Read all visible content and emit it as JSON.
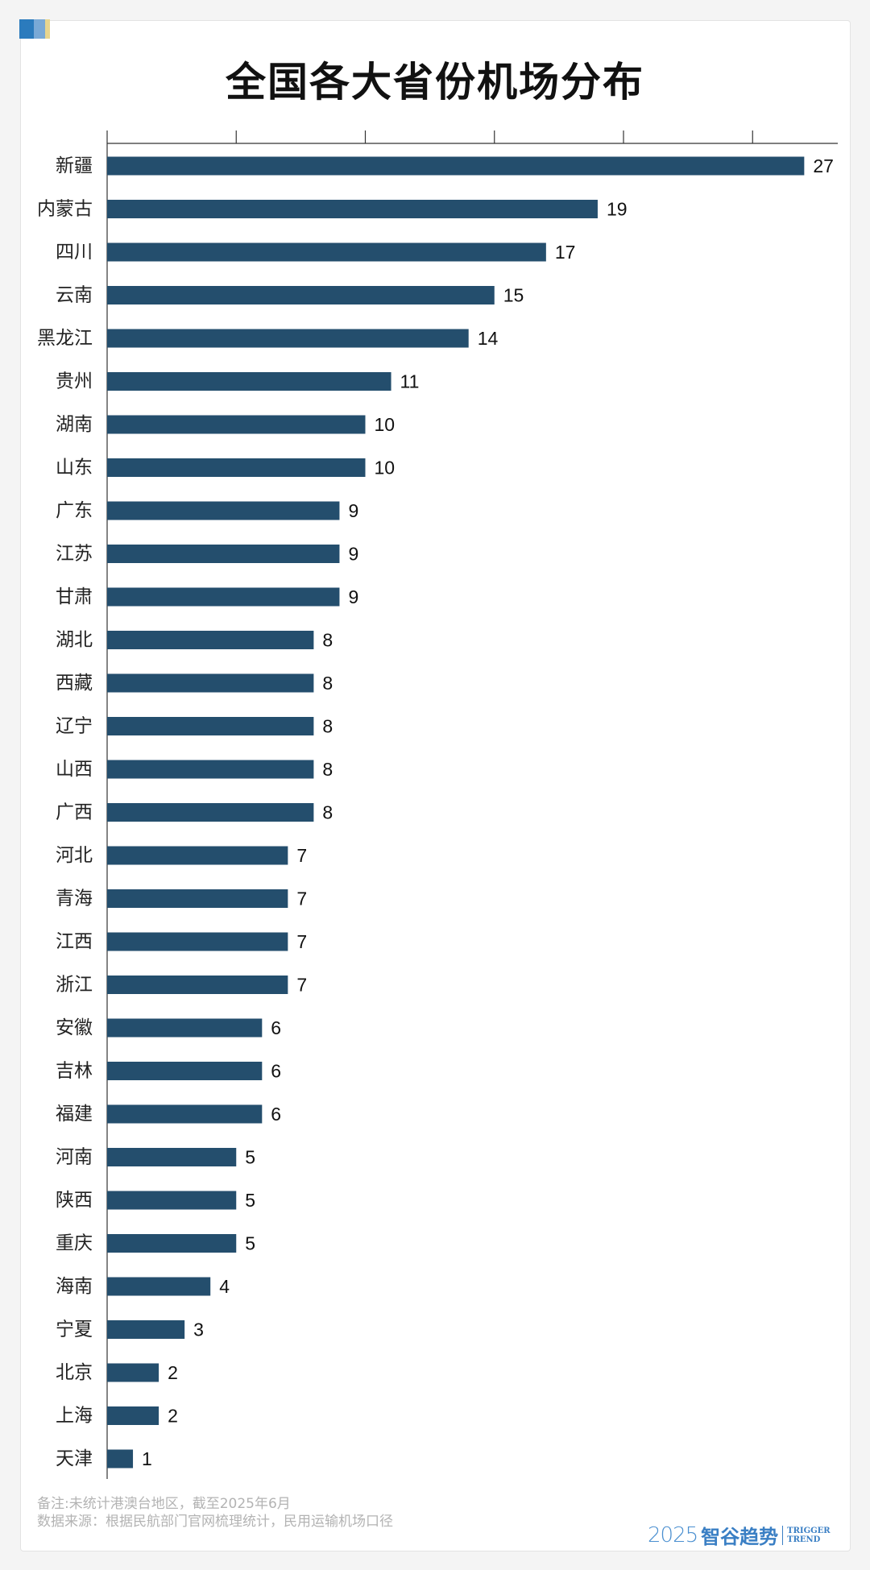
{
  "title": "全国各大省份机场分布",
  "chart_data": {
    "type": "bar",
    "orientation": "horizontal",
    "title": "全国各大省份机场分布",
    "categories": [
      "新疆",
      "内蒙古",
      "四川",
      "云南",
      "黑龙江",
      "贵州",
      "湖南",
      "山东",
      "广东",
      "江苏",
      "甘肃",
      "湖北",
      "西藏",
      "辽宁",
      "山西",
      "广西",
      "河北",
      "青海",
      "江西",
      "浙江",
      "安徽",
      "吉林",
      "福建",
      "河南",
      "陕西",
      "重庆",
      "海南",
      "宁夏",
      "北京",
      "上海",
      "天津"
    ],
    "values": [
      27,
      19,
      17,
      15,
      14,
      11,
      10,
      10,
      9,
      9,
      9,
      8,
      8,
      8,
      8,
      8,
      7,
      7,
      7,
      7,
      6,
      6,
      6,
      5,
      5,
      5,
      4,
      3,
      2,
      2,
      1
    ],
    "xlim": [
      0,
      28
    ],
    "grid": false,
    "bar_color": "#244e6d",
    "data_labels": true
  },
  "footer": {
    "note": "备注:未统计港澳台地区，截至2025年6月",
    "source": "数据来源：根据民航部门官网梳理统计，民用运输机场口径"
  },
  "brand": {
    "year": "2025",
    "name": "智谷趋势",
    "en_line1": "TRIGGER",
    "en_line2": "TREND"
  }
}
